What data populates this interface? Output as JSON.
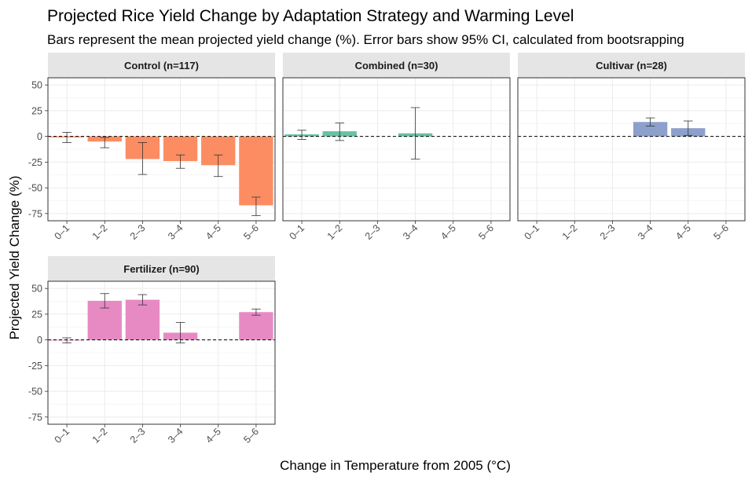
{
  "chart_data": {
    "type": "bar",
    "title": "Projected Rice Yield Change by Adaptation Strategy and Warming Level",
    "subtitle": "Bars represent the mean projected yield change (%). Error bars show 95% CI, calculated from bootsrapping",
    "xlabel": "Change in Temperature from 2005 (°C)",
    "ylabel": "Projected Yield Change (%)",
    "ylim": [
      -82,
      57
    ],
    "yticks": [
      -75,
      -50,
      -25,
      0,
      25,
      50
    ],
    "categories": [
      "0–1",
      "1–2",
      "2–3",
      "3–4",
      "4–5",
      "5–6"
    ],
    "grid": true,
    "facets": [
      {
        "label": "Control (n=117)",
        "color": "#FC8D62",
        "values": [
          -1,
          -5,
          -22,
          -24,
          -28,
          -67
        ],
        "ci_low": [
          -6,
          -11,
          -37,
          -31,
          -39,
          -77
        ],
        "ci_high": [
          4,
          -1,
          -6,
          -18,
          -18,
          -59
        ]
      },
      {
        "label": "Combined (n=30)",
        "color": "#66C2A5",
        "values": [
          2,
          5,
          null,
          3,
          null,
          null
        ],
        "ci_low": [
          -3,
          -4,
          null,
          -22,
          null,
          null
        ],
        "ci_high": [
          6,
          13,
          null,
          28,
          null,
          null
        ]
      },
      {
        "label": "Cultivar (n=28)",
        "color": "#8DA0CB",
        "values": [
          null,
          null,
          null,
          14,
          8,
          null
        ],
        "ci_low": [
          null,
          null,
          null,
          10,
          1,
          null
        ],
        "ci_high": [
          null,
          null,
          null,
          18,
          15,
          null
        ]
      },
      {
        "label": "Fertilizer (n=90)",
        "color": "#E78AC3",
        "values": [
          0,
          38,
          39,
          7,
          null,
          27
        ],
        "ci_low": [
          -3,
          31,
          34,
          -3,
          null,
          24
        ],
        "ci_high": [
          2,
          45,
          44,
          17,
          null,
          30
        ]
      }
    ]
  }
}
